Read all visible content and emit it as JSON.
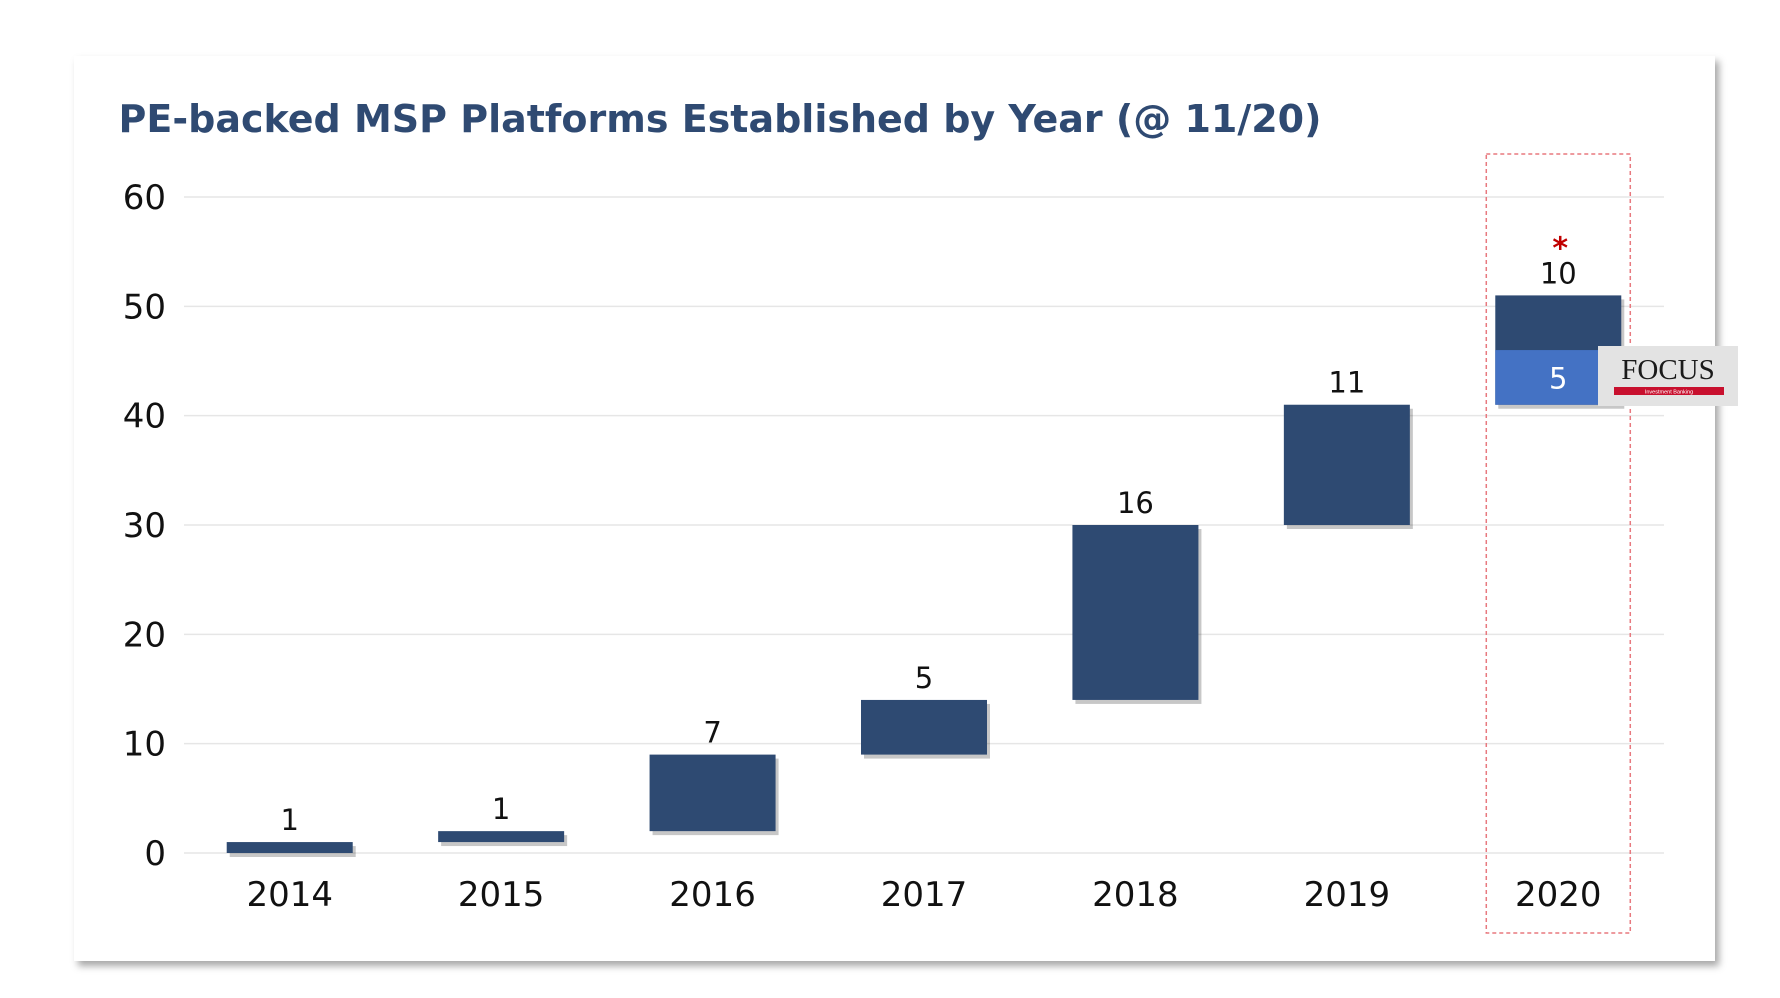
{
  "chart_data": {
    "type": "bar",
    "subtype": "waterfall",
    "title": "PE-backed MSP Platforms Established by Year (@ 11/20)",
    "xlabel": "",
    "ylabel": "",
    "categories": [
      "2014",
      "2015",
      "2016",
      "2017",
      "2018",
      "2019",
      "2020"
    ],
    "values": [
      1,
      1,
      7,
      5,
      16,
      11,
      10
    ],
    "cumulative_start": [
      0,
      1,
      2,
      9,
      14,
      30,
      41
    ],
    "ylim": [
      0,
      60
    ],
    "yticks": [
      "0",
      "10",
      "20",
      "30",
      "40",
      "50",
      "60"
    ],
    "grid": true,
    "highlight": {
      "category": "2020",
      "marker": "*",
      "sub_value": 5,
      "sub_label": "5",
      "logo_text": "FOCUS",
      "logo_subtext": "Investment Banking"
    },
    "colors": {
      "bar": "#2e4a72",
      "highlight_segment": "#4472c4",
      "title": "#2f4a72",
      "marker": "#c00000",
      "highlight_box": "#e8797f",
      "grid": "#e6e6e6"
    }
  }
}
